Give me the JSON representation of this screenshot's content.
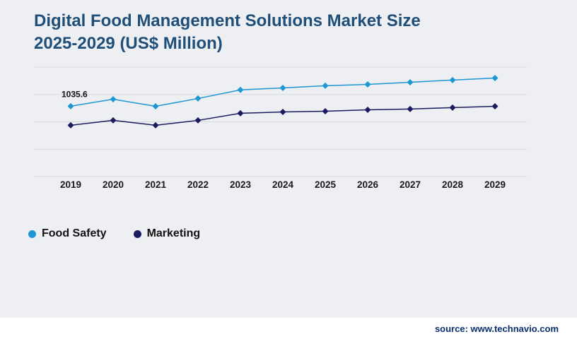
{
  "title": {
    "line1": "Digital Food Management Solutions Market Size",
    "line2": "2025-2029 (US$ Million)"
  },
  "legend": [
    {
      "label": "Food Safety",
      "color": "#1e97d4"
    },
    {
      "label": "Marketing",
      "color": "#1b1b60"
    }
  ],
  "source": {
    "label": "source: www.technavio.com"
  },
  "chart_data": {
    "type": "line",
    "title": "Digital Food Management Solutions Market Size 2025-2029 (US$ Million)",
    "categories": [
      "2019",
      "2020",
      "2021",
      "2022",
      "2023",
      "2024",
      "2025",
      "2026",
      "2027",
      "2028",
      "2029"
    ],
    "series": [
      {
        "name": "Food Safety",
        "color": "#1e97d4",
        "marker": "diamond",
        "values": [
          1035.6,
          1074,
          1035,
          1078,
          1125,
          1136,
          1148,
          1155,
          1167,
          1179,
          1190
        ]
      },
      {
        "name": "Marketing",
        "color": "#1b1b60",
        "marker": "diamond",
        "values": [
          931,
          958,
          931,
          958,
          997,
          1004,
          1008,
          1016,
          1020,
          1028,
          1035
        ]
      }
    ],
    "xlabel": "",
    "ylabel": "",
    "ylim": [
      650,
      1250
    ],
    "gridline_count": 5,
    "grid": true,
    "y_axis_labels_visible": false,
    "legend_position": "bottom-left",
    "annotation": {
      "text": "1035.6",
      "series": "Food Safety",
      "category": "2019"
    }
  }
}
